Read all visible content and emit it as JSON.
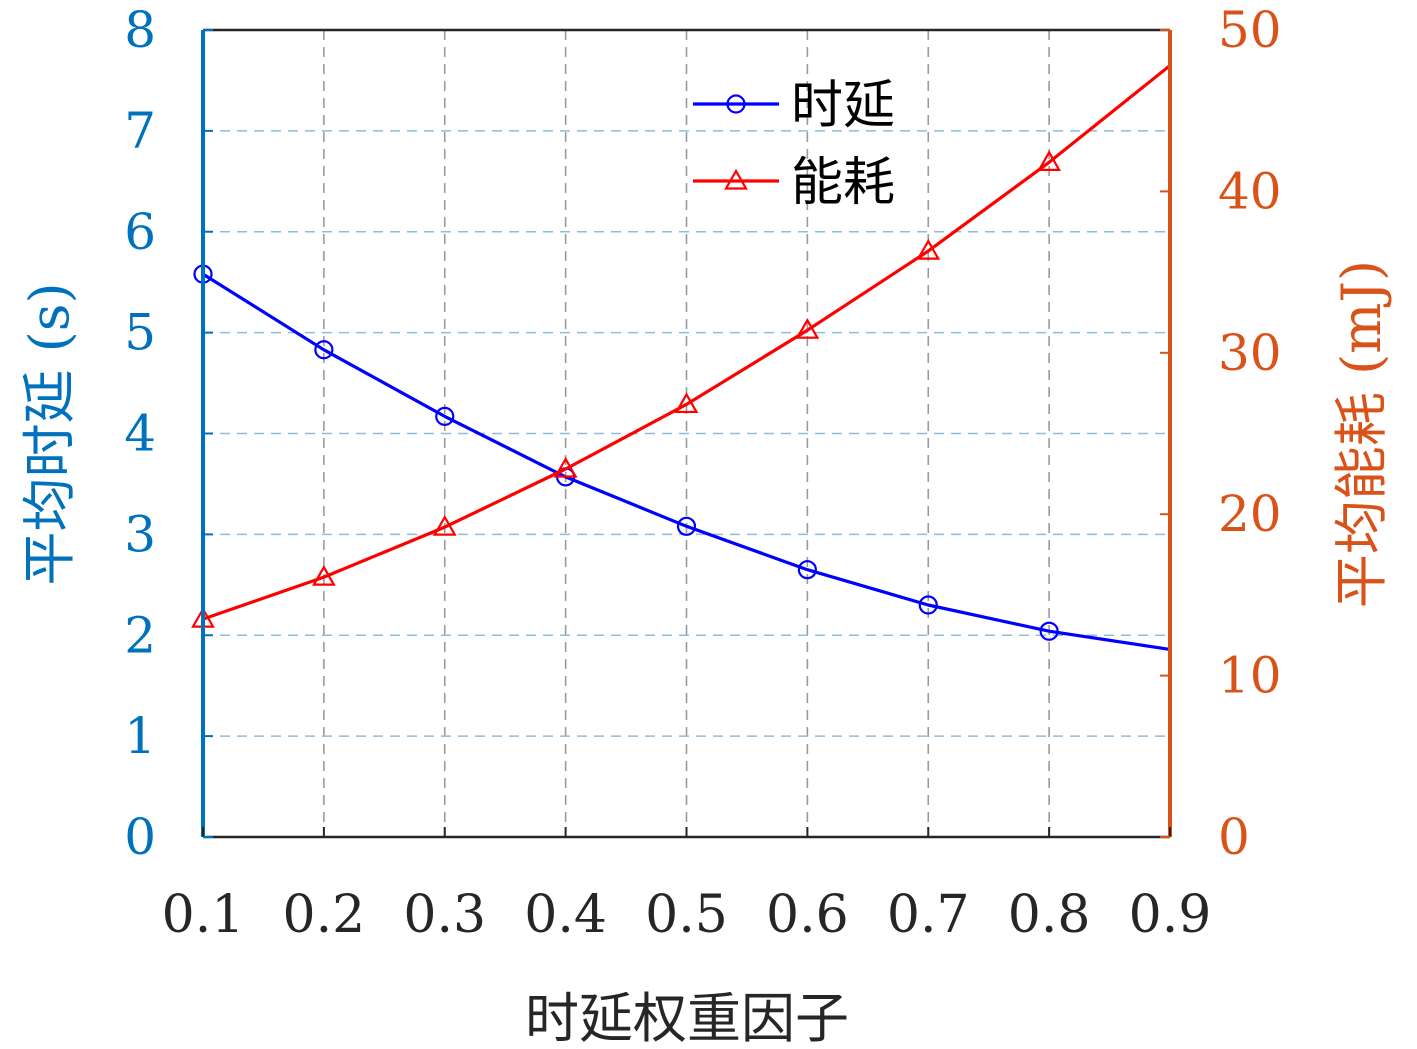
{
  "chart_data": {
    "type": "line",
    "xlabel": "时延权重因子",
    "ylabel_left": "平均时延 (s)",
    "ylabel_right": "平均能耗 (mJ)",
    "x": [
      0.1,
      0.2,
      0.3,
      0.4,
      0.5,
      0.6,
      0.7,
      0.8,
      0.9
    ],
    "x_ticks": [
      "0.1",
      "0.2",
      "0.3",
      "0.4",
      "0.5",
      "0.6",
      "0.7",
      "0.8",
      "0.9"
    ],
    "xlim": [
      0.1,
      0.9
    ],
    "ylim_left": [
      0,
      8
    ],
    "ylim_right": [
      0,
      50
    ],
    "yticks_left": [
      "0",
      "1",
      "2",
      "3",
      "4",
      "5",
      "6",
      "7",
      "8"
    ],
    "yticks_right": [
      "0",
      "10",
      "20",
      "30",
      "40",
      "50"
    ],
    "grid": true,
    "legend_position": "top-center",
    "series": [
      {
        "name": "时延",
        "axis": "left",
        "color": "#0000ff",
        "marker": "circle",
        "values": [
          5.58,
          4.83,
          4.17,
          3.57,
          3.08,
          2.65,
          2.3,
          2.04,
          1.86
        ],
        "marker_values": [
          5.58,
          4.83,
          4.17,
          3.57,
          3.08,
          2.65,
          2.3,
          2.04
        ]
      },
      {
        "name": "能耗",
        "axis": "right",
        "color": "#ff0000",
        "marker": "triangle",
        "values": [
          13.5,
          16.1,
          19.2,
          22.8,
          26.8,
          31.4,
          36.3,
          41.8,
          47.8
        ],
        "marker_values": [
          13.5,
          16.1,
          19.2,
          22.8,
          26.8,
          31.4,
          36.3,
          41.8
        ]
      }
    ],
    "left_axis_color": "#0072bd",
    "right_axis_color": "#d95319"
  }
}
